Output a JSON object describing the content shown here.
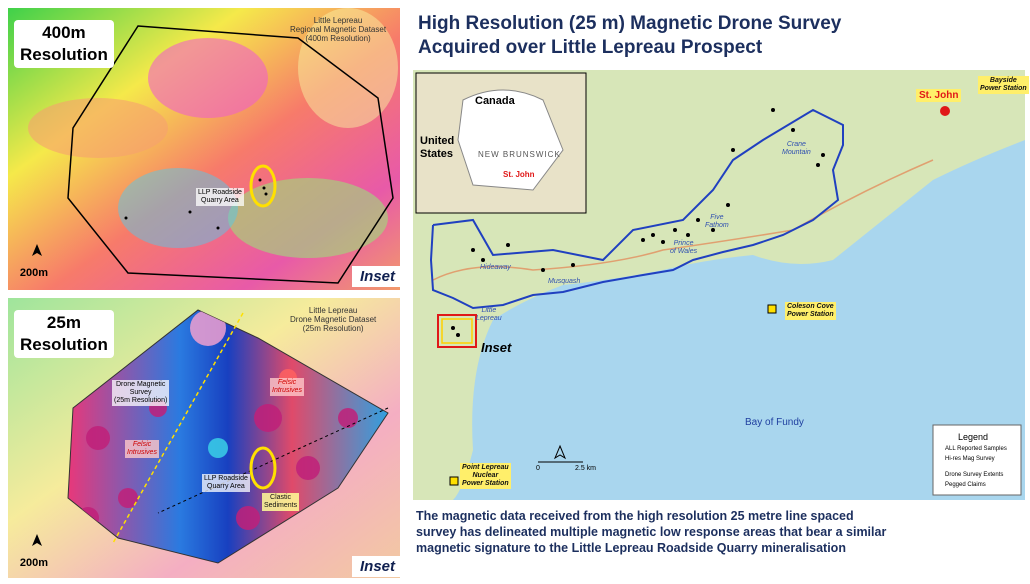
{
  "left_panels": [
    {
      "resolution_label": [
        "400m",
        "Resolution"
      ],
      "dataset_label": [
        "Little Lepreau",
        "Regional Magnetic Dataset",
        "(400m Resolution)"
      ],
      "area_label": [
        "LLP Roadside",
        "Quarry Area"
      ],
      "scale_label": "200m",
      "inset_label": "Inset"
    },
    {
      "resolution_label": [
        "25m",
        "Resolution"
      ],
      "dataset_label": [
        "Little Lepreau",
        "Drone Magnetic Dataset",
        "(25m Resolution)"
      ],
      "survey_label": [
        "Drone Magnetic",
        "Survey",
        "(25m Resolution)"
      ],
      "felsic_labels": [
        [
          "Felsic",
          "Intrusives"
        ],
        [
          "Felsic",
          "Intrusives"
        ]
      ],
      "area_label": [
        "LLP Roadside",
        "Quarry Area"
      ],
      "sediments_label": [
        "Clastic",
        "Sediments"
      ],
      "scale_label": "200m",
      "inset_label": "Inset"
    }
  ],
  "title": [
    "High Resolution (25 m) Magnetic Drone Survey",
    "Acquired over Little Lepreau Prospect"
  ],
  "map": {
    "inset_map": {
      "canada": "Canada",
      "united_states": [
        "United",
        "States"
      ],
      "new_brunswick": "NEW BRUNSWICK",
      "st_john": "St. John"
    },
    "st_john": "St. John",
    "bayside": [
      "Bayside",
      "Power Station"
    ],
    "crane_mountain": [
      "Crane",
      "Mountain"
    ],
    "five_fathom": [
      "Five",
      "Fathom"
    ],
    "prince_of_wales": [
      "Prince",
      "of Wales"
    ],
    "hideaway": "Hideaway",
    "musquash": "Musquash",
    "little_lepreau": [
      "Little",
      "Lepreau"
    ],
    "inset": "Inset",
    "coleson_cove": [
      "Coleson Cove",
      "Power Station"
    ],
    "bay_of_fundy": "Bay of Fundy",
    "point_lepreau": [
      "Point Lepreau",
      "Nuclear",
      "Power Station"
    ],
    "scale": [
      "0",
      "2.5 km"
    ],
    "legend": {
      "title": "Legend",
      "items": [
        "ALL Reported Samples",
        "Hi-res Mag Survey",
        "Drone Survey Extents",
        "Pegged Claims"
      ]
    }
  },
  "caption": [
    "The magnetic data received from the high resolution 25 metre line spaced",
    "survey has delineated multiple magnetic low response areas that bear a similar",
    "magnetic signature to the Little Lepreau Roadside Quarry mineralisation"
  ]
}
